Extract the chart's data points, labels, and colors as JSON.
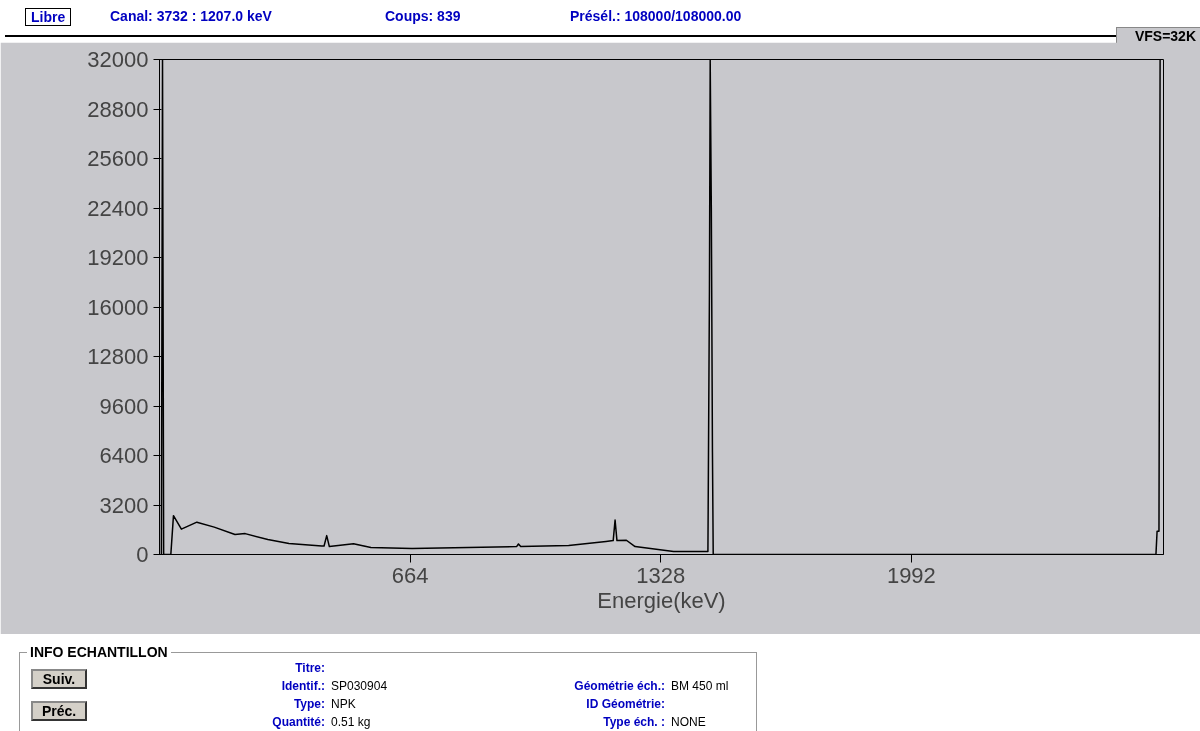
{
  "chart_data": {
    "type": "line",
    "xlabel": "Energie(keV)",
    "x": [
      5,
      8,
      11,
      30,
      37,
      58,
      99,
      145,
      200,
      227,
      287,
      343,
      430,
      436,
      443,
      450,
      514,
      560,
      669,
      946,
      951,
      957,
      1084,
      1183,
      1202,
      1207,
      1212,
      1237,
      1260,
      1362,
      1453,
      1457,
      1459,
      1462,
      1465,
      1467,
      2640,
      2643,
      2648,
      2651
    ],
    "series": [
      {
        "color": "#000000",
        "values": [
          0,
          32000,
          0,
          0,
          2510,
          1640,
          2090,
          1770,
          1290,
          1350,
          970,
          710,
          550,
          550,
          1220,
          510,
          700,
          450,
          390,
          510,
          680,
          510,
          580,
          840,
          900,
          2230,
          900,
          920,
          510,
          190,
          190,
          17000,
          32000,
          22400,
          6600,
          0,
          0,
          1500,
          1500,
          32000
        ]
      }
    ],
    "xlim": [
      0,
      2660
    ],
    "ylim": [
      0,
      32000
    ],
    "xticks": [
      664,
      1328,
      1992
    ],
    "yticks": [
      0,
      3200,
      6400,
      9600,
      12800,
      16000,
      19200,
      22400,
      25600,
      28800,
      32000
    ],
    "grid": false,
    "marker": "none",
    "line_style": "solid",
    "annotations": [
      "Libre",
      "Canal: 3732  :  1207.0 keV",
      "Coups: 839",
      "Présél.: 108000/108000.00",
      "VFS=32K",
      "INFO ECHANTILLON",
      "Suiv.",
      "Préc.",
      "Titre:",
      "Identif.: SP030904",
      "Type: NPK",
      "Quantité: 0.51 kg",
      "Géométrie éch.: BM 450 ml",
      "ID Géométrie:",
      "Type éch. : NONE"
    ]
  }
}
